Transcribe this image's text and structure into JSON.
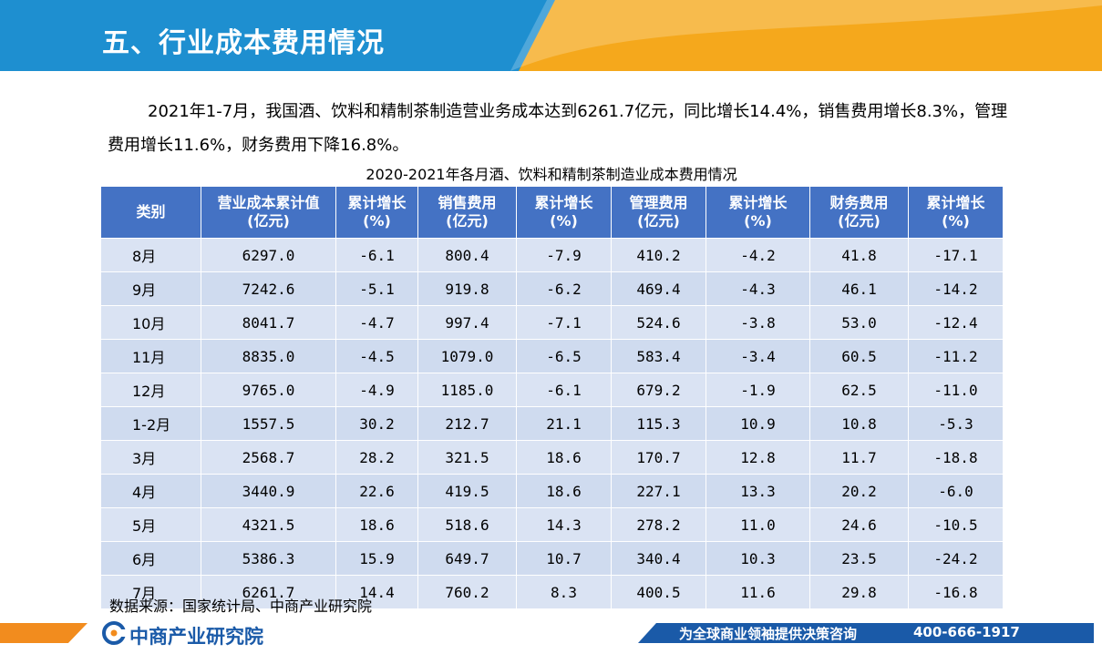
{
  "header": {
    "title": "五、行业成本费用情况",
    "color_primary": "#1e8fd0",
    "color_accent": "#f5a81c"
  },
  "intro": {
    "text": "2021年1-7月，我国酒、饮料和精制茶制造营业务成本达到6261.7亿元，同比增长14.4%，销售费用增长8.3%，管理费用增长11.6%，财务费用下降16.8%。"
  },
  "table": {
    "title": "2020-2021年各月酒、饮料和精制茶制造业成本费用情况",
    "header_color": "#4472c4",
    "columns": [
      [
        "类别"
      ],
      [
        "营业成本累计值",
        "(亿元)"
      ],
      [
        "累计增长",
        "(%)"
      ],
      [
        "销售费用",
        "(亿元)"
      ],
      [
        "累计增长",
        "(%)"
      ],
      [
        "管理费用",
        "(亿元)"
      ],
      [
        "累计增长",
        "(%)"
      ],
      [
        "财务费用",
        "(亿元)"
      ],
      [
        "累计增长",
        "(%)"
      ]
    ],
    "rows": [
      [
        "8月",
        "6297.0",
        "-6.1",
        "800.4",
        "-7.9",
        "410.2",
        "-4.2",
        "41.8",
        "-17.1"
      ],
      [
        "9月",
        "7242.6",
        "-5.1",
        "919.8",
        "-6.2",
        "469.4",
        "-4.3",
        "46.1",
        "-14.2"
      ],
      [
        "10月",
        "8041.7",
        "-4.7",
        "997.4",
        "-7.1",
        "524.6",
        "-3.8",
        "53.0",
        "-12.4"
      ],
      [
        "11月",
        "8835.0",
        "-4.5",
        "1079.0",
        "-6.5",
        "583.4",
        "-3.4",
        "60.5",
        "-11.2"
      ],
      [
        "12月",
        "9765.0",
        "-4.9",
        "1185.0",
        "-6.1",
        "679.2",
        "-1.9",
        "62.5",
        "-11.0"
      ],
      [
        "1-2月",
        "1557.5",
        "30.2",
        "212.7",
        "21.1",
        "115.3",
        "10.9",
        "10.8",
        "-5.3"
      ],
      [
        "3月",
        "2568.7",
        "28.2",
        "321.5",
        "18.6",
        "170.7",
        "12.8",
        "11.7",
        "-18.8"
      ],
      [
        "4月",
        "3440.9",
        "22.6",
        "419.5",
        "18.6",
        "227.1",
        "13.3",
        "20.2",
        "-6.0"
      ],
      [
        "5月",
        "4321.5",
        "18.6",
        "518.6",
        "14.3",
        "278.2",
        "11.0",
        "24.6",
        "-10.5"
      ],
      [
        "6月",
        "5386.3",
        "15.9",
        "649.7",
        "10.7",
        "340.4",
        "10.3",
        "23.5",
        "-24.2"
      ],
      [
        "7月",
        "6261.7",
        "14.4",
        "760.2",
        "8.3",
        "400.5",
        "11.6",
        "29.8",
        "-16.8"
      ]
    ]
  },
  "source": {
    "text": "数据来源：国家统计局、中商产业研究院"
  },
  "footer": {
    "brand": "中商产业研究院",
    "slogan": "为全球商业领袖提供决策咨询",
    "phone": "400-666-1917",
    "logo_icon": "askci-logo-icon",
    "color_brand": "#1a5aa8",
    "color_orange": "#f28c1e"
  }
}
